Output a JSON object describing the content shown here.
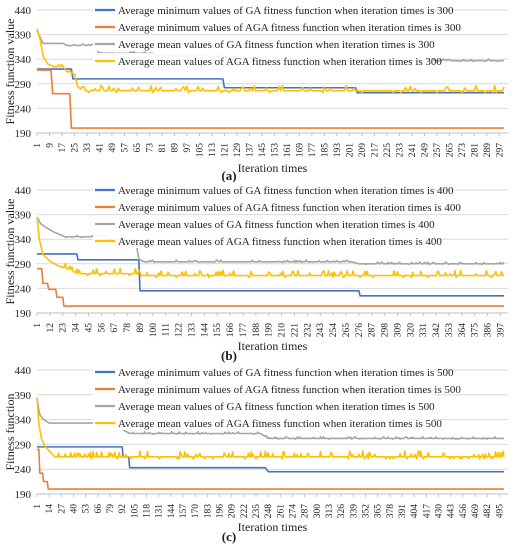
{
  "chart_data": [
    {
      "type": "line",
      "panel_label": "(a)",
      "xlabel": "Iteration times",
      "ylabel": "Fitness function value",
      "ylim": [
        190,
        440
      ],
      "yticks": [
        190,
        240,
        290,
        340,
        390,
        440
      ],
      "xlim": [
        1,
        300
      ],
      "xtick_start": 1,
      "xtick_step": 8,
      "grid": "horizontal",
      "legend_position": "top-center",
      "series": [
        {
          "name": "Average minimum values of GA fitness function when iteration times is 300",
          "color": "#4472c4",
          "noise": 0,
          "points": [
            [
              1,
              320
            ],
            [
              23,
              320
            ],
            [
              24,
              300
            ],
            [
              120,
              300
            ],
            [
              121,
              282
            ],
            [
              205,
              282
            ],
            [
              206,
              272
            ],
            [
              300,
              272
            ]
          ]
        },
        {
          "name": "Average minimum values of AGA fitness function when iteration times is 300",
          "color": "#ed7d31",
          "noise": 0,
          "points": [
            [
              1,
              318
            ],
            [
              10,
              318
            ],
            [
              11,
              270
            ],
            [
              22,
              270
            ],
            [
              23,
              200
            ],
            [
              300,
              200
            ]
          ]
        },
        {
          "name": "Average mean values of GA fitness function when iteration times is 300",
          "color": "#a5a5a5",
          "noise": 3,
          "points": [
            [
              1,
              398
            ],
            [
              4,
              378
            ],
            [
              5,
              372
            ],
            [
              18,
              372
            ],
            [
              20,
              368
            ],
            [
              38,
              368
            ],
            [
              40,
              352
            ],
            [
              75,
              352
            ],
            [
              78,
              348
            ],
            [
              120,
              346
            ],
            [
              125,
              340
            ],
            [
              145,
              340
            ],
            [
              175,
              338
            ],
            [
              200,
              337
            ],
            [
              300,
              337
            ]
          ]
        },
        {
          "name": "Average mean values of AGA fitness function when iteration times is 300",
          "color": "#ffc000",
          "noise": 9,
          "points": [
            [
              1,
              402
            ],
            [
              3,
              380
            ],
            [
              5,
              345
            ],
            [
              8,
              330
            ],
            [
              12,
              325
            ],
            [
              18,
              324
            ],
            [
              20,
              315
            ],
            [
              25,
              310
            ],
            [
              27,
              285
            ],
            [
              30,
              276
            ],
            [
              300,
              276
            ]
          ]
        }
      ]
    },
    {
      "type": "line",
      "panel_label": "(b)",
      "xlabel": "Iteration times",
      "ylabel": "Fitness function value",
      "ylim": [
        190,
        440
      ],
      "yticks": [
        190,
        240,
        290,
        340,
        390,
        440
      ],
      "xlim": [
        1,
        400
      ],
      "xtick_start": 1,
      "xtick_step": 11,
      "grid": "horizontal",
      "legend_position": "top-center",
      "series": [
        {
          "name": "Average minimum values of GA fitness function when iteration times is 400",
          "color": "#4472c4",
          "noise": 0,
          "points": [
            [
              1,
              310
            ],
            [
              35,
              310
            ],
            [
              36,
              298
            ],
            [
              88,
              298
            ],
            [
              89,
              235
            ],
            [
              276,
              235
            ],
            [
              277,
              225
            ],
            [
              400,
              225
            ]
          ]
        },
        {
          "name": "Average minimum values of AGA fitness function when iteration times is 400",
          "color": "#ed7d31",
          "noise": 0,
          "points": [
            [
              1,
              280
            ],
            [
              5,
              280
            ],
            [
              6,
              250
            ],
            [
              10,
              250
            ],
            [
              11,
              238
            ],
            [
              17,
              238
            ],
            [
              18,
              222
            ],
            [
              23,
              222
            ],
            [
              24,
              204
            ],
            [
              400,
              204
            ]
          ]
        },
        {
          "name": "Average mean values of GA fitness function when iteration times is 400",
          "color": "#a5a5a5",
          "noise": 3,
          "points": [
            [
              1,
              385
            ],
            [
              4,
              372
            ],
            [
              8,
              365
            ],
            [
              15,
              355
            ],
            [
              25,
              345
            ],
            [
              60,
              345
            ],
            [
              62,
              340
            ],
            [
              85,
              340
            ],
            [
              88,
              300
            ],
            [
              92,
              294
            ],
            [
              270,
              294
            ],
            [
              276,
              290
            ],
            [
              400,
              290
            ]
          ]
        },
        {
          "name": "Average mean values of AGA fitness function when iteration times is 400",
          "color": "#ffc000",
          "noise": 9,
          "points": [
            [
              1,
              385
            ],
            [
              3,
              340
            ],
            [
              6,
              310
            ],
            [
              12,
              295
            ],
            [
              20,
              285
            ],
            [
              30,
              278
            ],
            [
              35,
              270
            ],
            [
              88,
              270
            ],
            [
              90,
              266
            ],
            [
              400,
              266
            ]
          ]
        }
      ]
    },
    {
      "type": "line",
      "panel_label": "(c)",
      "xlabel": "Iteration times",
      "ylabel": "Fitness function",
      "ylim": [
        190,
        440
      ],
      "yticks": [
        190,
        240,
        290,
        340,
        390,
        440
      ],
      "xlim": [
        1,
        500
      ],
      "xtick_start": 1,
      "xtick_step": 13,
      "grid": "horizontal",
      "legend_position": "top-center",
      "series": [
        {
          "name": "Average minimum values of GA fitness function when iteration times is 500",
          "color": "#4472c4",
          "noise": 0,
          "points": [
            [
              1,
              285
            ],
            [
              92,
              285
            ],
            [
              93,
              265
            ],
            [
              99,
              265
            ],
            [
              100,
              243
            ],
            [
              245,
              243
            ],
            [
              248,
              235
            ],
            [
              500,
              235
            ]
          ]
        },
        {
          "name": "Average minimum values of AGA fitness function when iteration times is 500",
          "color": "#ed7d31",
          "noise": 0,
          "points": [
            [
              1,
              280
            ],
            [
              3,
              280
            ],
            [
              4,
              232
            ],
            [
              7,
              232
            ],
            [
              8,
              215
            ],
            [
              12,
              215
            ],
            [
              13,
              200
            ],
            [
              500,
              200
            ]
          ]
        },
        {
          "name": "Average mean values of GA fitness function when iteration times is 500",
          "color": "#a5a5a5",
          "noise": 3,
          "points": [
            [
              1,
              382
            ],
            [
              4,
              350
            ],
            [
              8,
              340
            ],
            [
              14,
              333
            ],
            [
              90,
              333
            ],
            [
              92,
              320
            ],
            [
              100,
              312
            ],
            [
              240,
              312
            ],
            [
              248,
              302
            ],
            [
              500,
              302
            ]
          ]
        },
        {
          "name": "Average mean values of AGA fitness function when iteration times is 500",
          "color": "#ffc000",
          "noise": 10,
          "points": [
            [
              1,
              385
            ],
            [
              3,
              330
            ],
            [
              6,
              300
            ],
            [
              10,
              285
            ],
            [
              15,
              275
            ],
            [
              20,
              265
            ],
            [
              500,
              265
            ]
          ]
        }
      ]
    }
  ]
}
